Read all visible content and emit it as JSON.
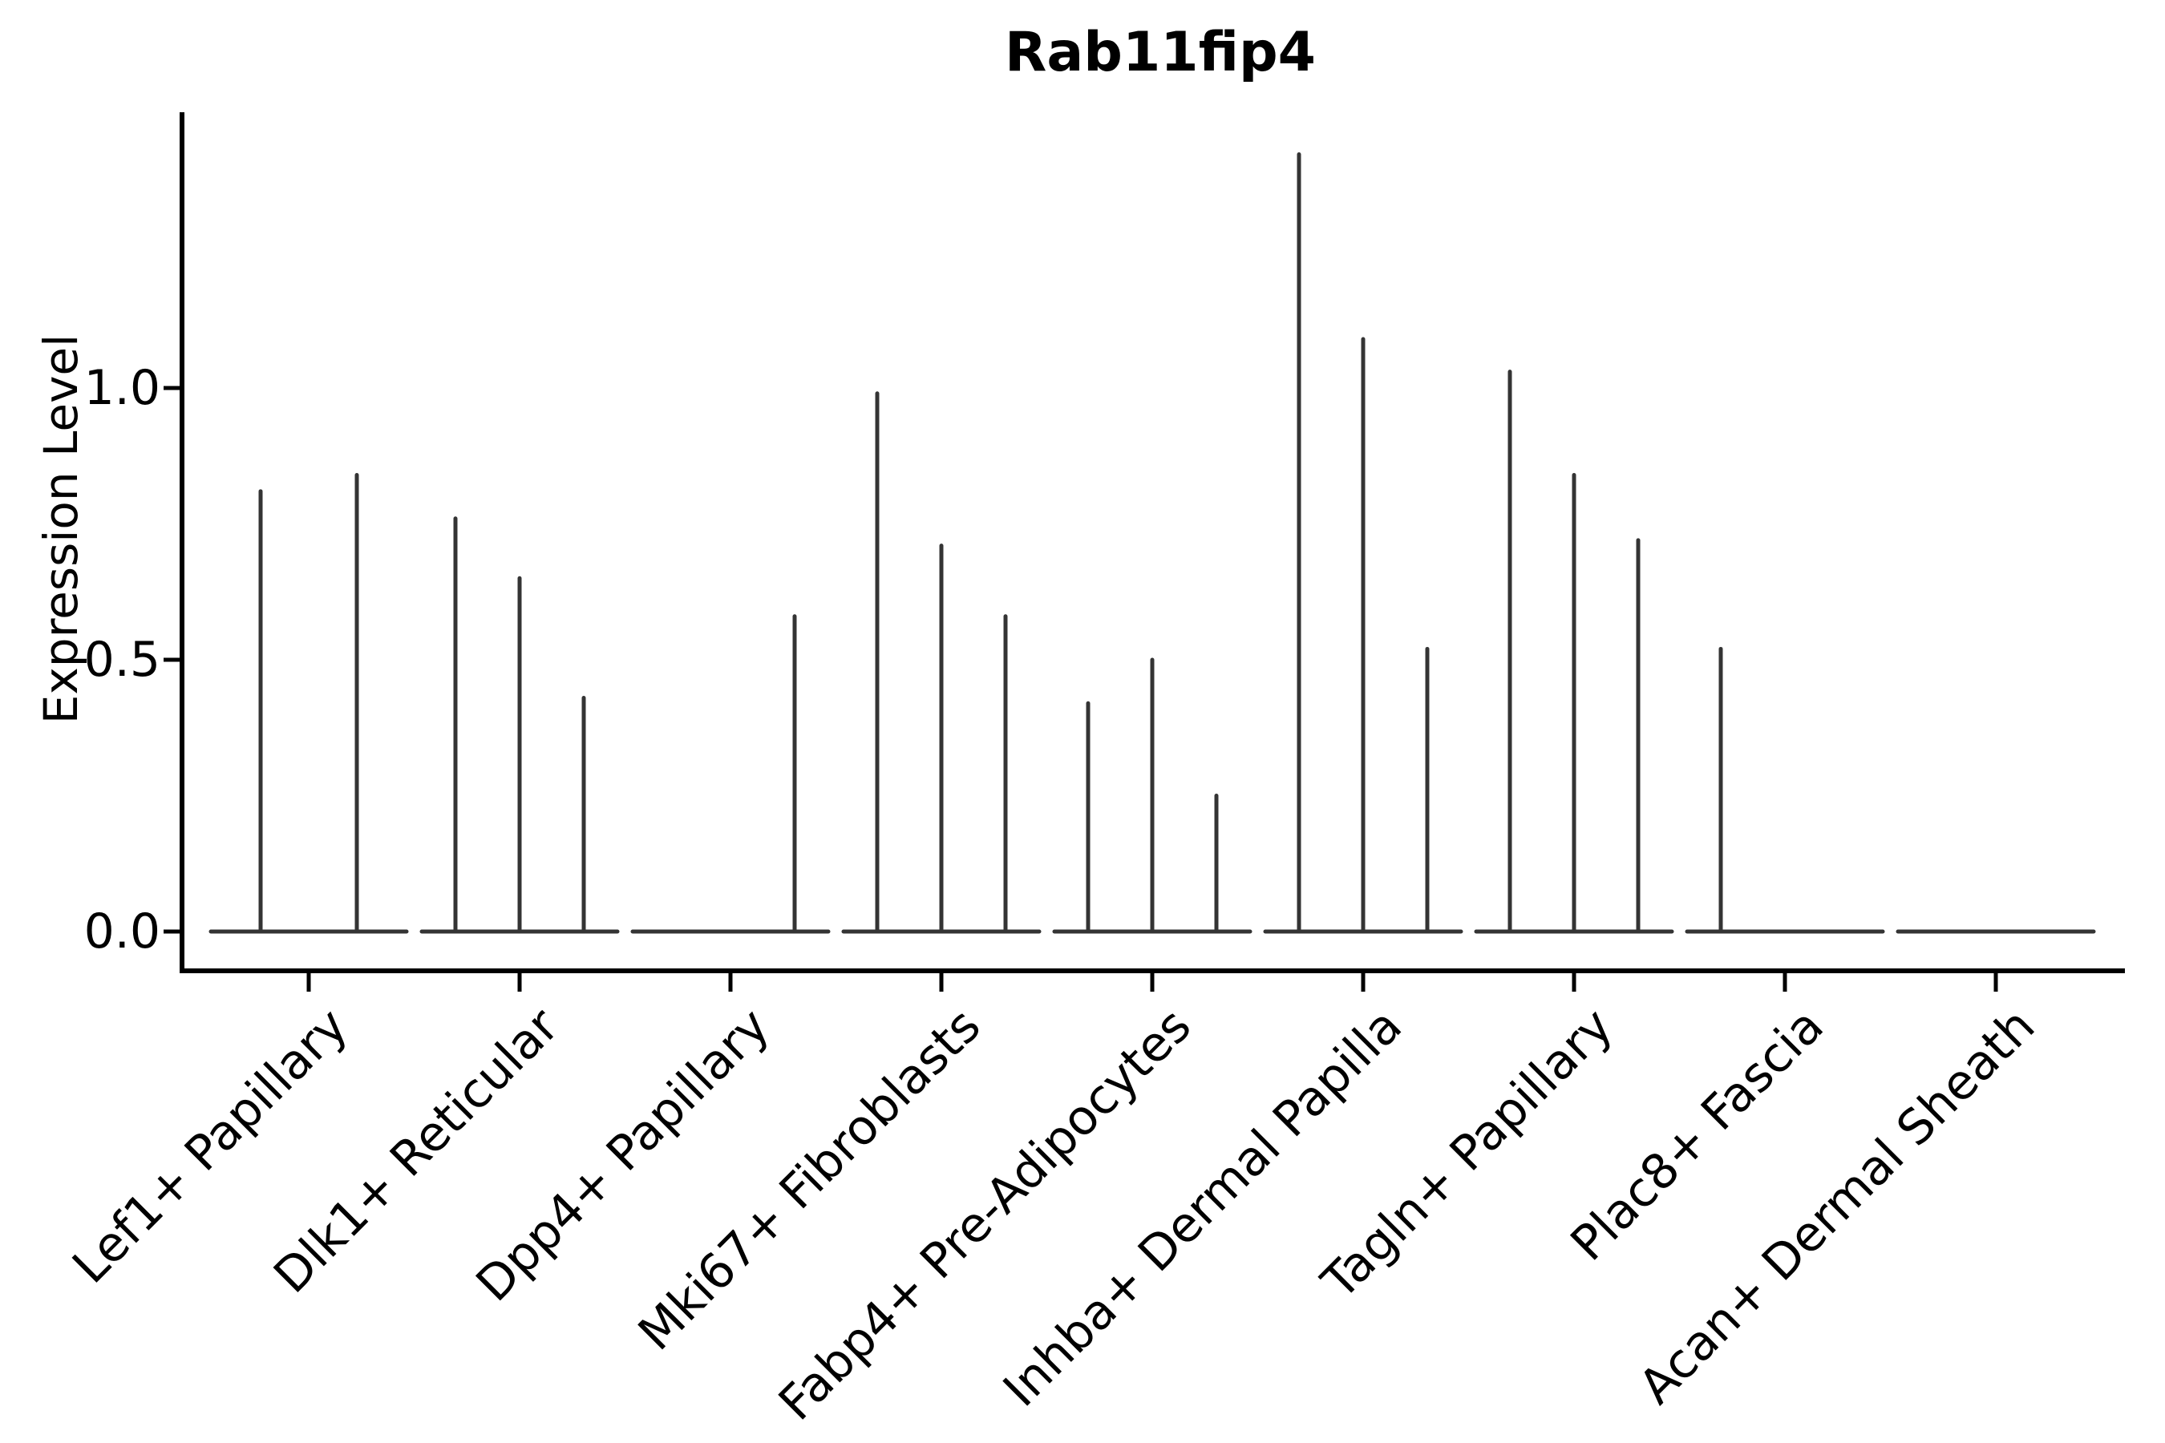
{
  "figure": {
    "title": "Rab11fip4"
  },
  "chart_data": {
    "type": "violin",
    "title": "Rab11fip4",
    "xlabel": "",
    "ylabel": "Expression Level",
    "ytick_labels": [
      "0.0",
      "0.5",
      "1.0"
    ],
    "ytick_values": [
      0.0,
      0.5,
      1.0
    ],
    "ylim": [
      -0.07,
      1.51
    ],
    "grid": false,
    "legend": "none",
    "background_color": "#ffffff",
    "violin_color": "#343434",
    "axis_color": "#000000",
    "categories": [
      "Lef1+ Papillary",
      "Dlk1+ Reticular",
      "Dpp4+ Papillary",
      "Mki67+ Fibroblasts",
      "Fabp4+ Pre-Adipocytes",
      "Inhba+ Dermal Papilla",
      "Tagln+ Papillary",
      "Plac8+ Fascia",
      "Acan+ Dermal Sheath"
    ],
    "series": [
      {
        "category": "Lef1+ Papillary",
        "spike_max_expression": [
          0.81,
          0.84
        ]
      },
      {
        "category": "Dlk1+ Reticular",
        "spike_max_expression": [
          0.76,
          0.65,
          0.43
        ]
      },
      {
        "category": "Dpp4+ Papillary",
        "spike_max_expression": [
          0,
          0,
          0.58
        ]
      },
      {
        "category": "Mki67+ Fibroblasts",
        "spike_max_expression": [
          0.99,
          0.71,
          0.58
        ]
      },
      {
        "category": "Fabp4+ Pre-Adipocytes",
        "spike_max_expression": [
          0.42,
          0.5,
          0.25
        ]
      },
      {
        "category": "Inhba+ Dermal Papilla",
        "spike_max_expression": [
          1.43,
          1.09,
          0.52
        ]
      },
      {
        "category": "Tagln+ Papillary",
        "spike_max_expression": [
          1.03,
          0.84,
          0.72
        ]
      },
      {
        "category": "Plac8+ Fascia",
        "spike_max_expression": [
          0.52,
          0,
          0
        ]
      },
      {
        "category": "Acan+ Dermal Sheath",
        "spike_max_expression": [
          0,
          0,
          0
        ]
      }
    ]
  }
}
